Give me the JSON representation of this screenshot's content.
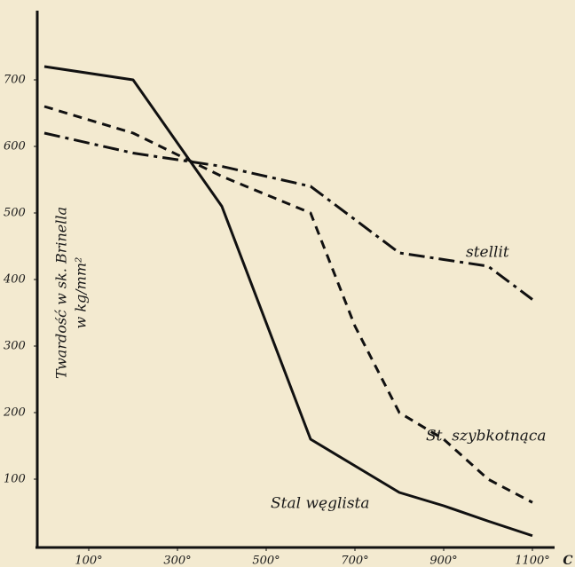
{
  "chart_data": {
    "type": "line",
    "ylabel": [
      "Twardość w sk. Brinella",
      "w kg/mm²"
    ],
    "xlabel": "C",
    "x": [
      0,
      200,
      400,
      600,
      700,
      800,
      900,
      1000,
      1100
    ],
    "series": [
      {
        "name": "Stal węglista",
        "color": "#111111",
        "style": "solid",
        "values": [
          720,
          700,
          510,
          160,
          120,
          80,
          60,
          37,
          15
        ]
      },
      {
        "name": "St. szybkotnąca",
        "color": "#111111",
        "style": "dashed",
        "values": [
          660,
          620,
          555,
          500,
          330,
          200,
          160,
          100,
          65
        ]
      },
      {
        "name": "stellit",
        "color": "#111111",
        "style": "dashdot",
        "values": [
          620,
          590,
          570,
          540,
          490,
          440,
          430,
          420,
          370
        ]
      }
    ],
    "xlim": [
      -16,
      1140
    ],
    "xticks": [
      {
        "value": 100,
        "label": "100°"
      },
      {
        "value": 300,
        "label": "300°"
      },
      {
        "value": 500,
        "label": "500°"
      },
      {
        "value": 700,
        "label": "700°"
      },
      {
        "value": 900,
        "label": "900°"
      },
      {
        "value": 1100,
        "label": "1100°"
      }
    ],
    "ylim": [
      0,
      780
    ],
    "yticks": [
      100,
      200,
      300,
      400,
      500,
      600,
      700
    ],
    "grid": false
  }
}
